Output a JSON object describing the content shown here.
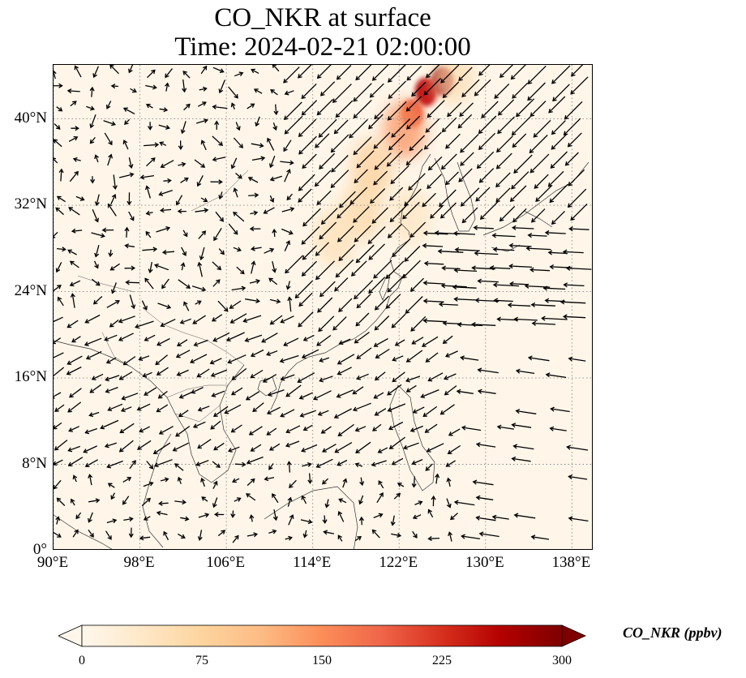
{
  "title": {
    "line1": "CO_NKR at surface",
    "line2": "Time: 2024-02-21 02:00:00"
  },
  "map": {
    "extent": {
      "lon_min": 90,
      "lon_max": 140,
      "lat_min": 0,
      "lat_max": 45
    },
    "lat_ticks": [
      {
        "value": 0,
        "label": "0°"
      },
      {
        "value": 8,
        "label": "8°N"
      },
      {
        "value": 16,
        "label": "16°N"
      },
      {
        "value": 24,
        "label": "24°N"
      },
      {
        "value": 32,
        "label": "32°N"
      },
      {
        "value": 40,
        "label": "40°N"
      }
    ],
    "lon_ticks": [
      {
        "value": 90,
        "label": "90°E"
      },
      {
        "value": 98,
        "label": "98°E"
      },
      {
        "value": 106,
        "label": "106°E"
      },
      {
        "value": 114,
        "label": "114°E"
      },
      {
        "value": 122,
        "label": "122°E"
      },
      {
        "value": 130,
        "label": "130°E"
      },
      {
        "value": 138,
        "label": "138°E"
      }
    ],
    "gridlines": "dotted",
    "background_color": "#fff6e9",
    "wind_vectors": "black arrows",
    "plume": [
      {
        "lon": 126.0,
        "lat": 43.5,
        "value": 290
      },
      {
        "lon": 124.5,
        "lat": 42.5,
        "value": 250
      },
      {
        "lon": 123.2,
        "lat": 40.5,
        "value": 200
      },
      {
        "lon": 122.5,
        "lat": 39.0,
        "value": 150
      },
      {
        "lon": 119.5,
        "lat": 35.5,
        "value": 85
      },
      {
        "lon": 118.5,
        "lat": 31.5,
        "value": 70
      },
      {
        "lon": 116.0,
        "lat": 29.0,
        "value": 55
      },
      {
        "lon": 123.0,
        "lat": 31.0,
        "value": 45
      },
      {
        "lon": 127.0,
        "lat": 44.0,
        "value": 60
      }
    ]
  },
  "colorbar": {
    "label": "CO_NKR (ppbv)",
    "colormap": "OrRd",
    "ticks": [
      "0",
      "75",
      "150",
      "225",
      "300"
    ],
    "min": 0,
    "max": 300,
    "colors": [
      "#fff7ec",
      "#fee8c8",
      "#fdd49e",
      "#fdbb84",
      "#fc8d59",
      "#ef6548",
      "#d7301f",
      "#b30000",
      "#7f0000"
    ]
  }
}
